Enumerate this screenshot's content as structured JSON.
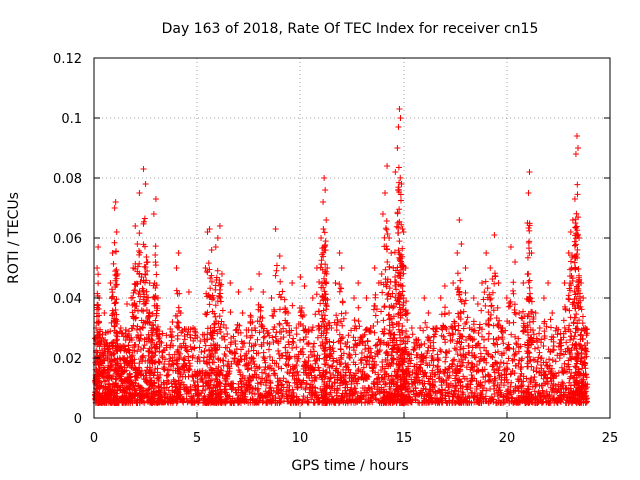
{
  "chart_data": {
    "type": "scatter",
    "title": "Day 163 of 2018, Rate Of TEC Index for receiver cn15",
    "xlabel": "GPS time / hours",
    "ylabel": "ROTI / TECUs",
    "xlim": [
      0,
      25
    ],
    "ylim": [
      0,
      0.12
    ],
    "xticks": [
      0,
      5,
      10,
      15,
      20,
      25
    ],
    "xtick_labels": [
      "0",
      "5",
      "10",
      "15",
      "20",
      "25"
    ],
    "yticks": [
      0,
      0.02,
      0.04,
      0.06,
      0.08,
      0.1,
      0.12
    ],
    "ytick_labels": [
      "0",
      "0.02",
      "0.04",
      "0.06",
      "0.08",
      "0.1",
      "0.12"
    ],
    "grid": true,
    "marker": "+",
    "marker_color": "#ff0000",
    "series": [
      {
        "name": "cn15",
        "points": [
          [
            0.05,
            0.012
          ],
          [
            0.1,
            0.03
          ],
          [
            0.15,
            0.05
          ],
          [
            0.2,
            0.057
          ],
          [
            0.25,
            0.04
          ],
          [
            0.3,
            0.02
          ],
          [
            0.4,
            0.015
          ],
          [
            0.5,
            0.035
          ],
          [
            0.6,
            0.025
          ],
          [
            0.7,
            0.01
          ],
          [
            0.8,
            0.045
          ],
          [
            0.9,
            0.055
          ],
          [
            1.0,
            0.07
          ],
          [
            1.05,
            0.072
          ],
          [
            1.1,
            0.062
          ],
          [
            1.15,
            0.048
          ],
          [
            1.3,
            0.03
          ],
          [
            1.4,
            0.02
          ],
          [
            1.5,
            0.012
          ],
          [
            1.6,
            0.038
          ],
          [
            1.7,
            0.028
          ],
          [
            1.8,
            0.04
          ],
          [
            1.9,
            0.05
          ],
          [
            2.0,
            0.064
          ],
          [
            2.1,
            0.058
          ],
          [
            2.2,
            0.075
          ],
          [
            2.3,
            0.047
          ],
          [
            2.4,
            0.083
          ],
          [
            2.5,
            0.078
          ],
          [
            2.6,
            0.052
          ],
          [
            2.7,
            0.045
          ],
          [
            2.8,
            0.03
          ],
          [
            2.9,
            0.068
          ],
          [
            3.0,
            0.073
          ],
          [
            3.1,
            0.04
          ],
          [
            3.2,
            0.025
          ],
          [
            3.4,
            0.018
          ],
          [
            3.6,
            0.012
          ],
          [
            3.8,
            0.032
          ],
          [
            4.0,
            0.05
          ],
          [
            4.1,
            0.055
          ],
          [
            4.2,
            0.035
          ],
          [
            4.4,
            0.02
          ],
          [
            4.6,
            0.042
          ],
          [
            4.8,
            0.03
          ],
          [
            5.0,
            0.015
          ],
          [
            5.2,
            0.022
          ],
          [
            5.4,
            0.05
          ],
          [
            5.5,
            0.062
          ],
          [
            5.6,
            0.063
          ],
          [
            5.7,
            0.056
          ],
          [
            5.8,
            0.04
          ],
          [
            5.9,
            0.057
          ],
          [
            6.0,
            0.06
          ],
          [
            6.1,
            0.064
          ],
          [
            6.2,
            0.048
          ],
          [
            6.4,
            0.03
          ],
          [
            6.6,
            0.045
          ],
          [
            6.8,
            0.02
          ],
          [
            7.0,
            0.042
          ],
          [
            7.2,
            0.035
          ],
          [
            7.4,
            0.02
          ],
          [
            7.6,
            0.043
          ],
          [
            7.8,
            0.03
          ],
          [
            8.0,
            0.048
          ],
          [
            8.2,
            0.042
          ],
          [
            8.4,
            0.025
          ],
          [
            8.6,
            0.04
          ],
          [
            8.8,
            0.063
          ],
          [
            9.0,
            0.054
          ],
          [
            9.2,
            0.05
          ],
          [
            9.4,
            0.035
          ],
          [
            9.6,
            0.045
          ],
          [
            9.8,
            0.03
          ],
          [
            10.0,
            0.047
          ],
          [
            10.2,
            0.044
          ],
          [
            10.4,
            0.025
          ],
          [
            10.6,
            0.04
          ],
          [
            10.8,
            0.05
          ],
          [
            11.0,
            0.06
          ],
          [
            11.1,
            0.072
          ],
          [
            11.15,
            0.08
          ],
          [
            11.2,
            0.076
          ],
          [
            11.25,
            0.066
          ],
          [
            11.3,
            0.05
          ],
          [
            11.5,
            0.03
          ],
          [
            11.7,
            0.045
          ],
          [
            11.9,
            0.055
          ],
          [
            12.0,
            0.05
          ],
          [
            12.2,
            0.035
          ],
          [
            12.4,
            0.02
          ],
          [
            12.6,
            0.04
          ],
          [
            12.8,
            0.045
          ],
          [
            13.0,
            0.025
          ],
          [
            13.2,
            0.04
          ],
          [
            13.4,
            0.03
          ],
          [
            13.6,
            0.05
          ],
          [
            13.8,
            0.045
          ],
          [
            14.0,
            0.068
          ],
          [
            14.1,
            0.075
          ],
          [
            14.2,
            0.084
          ],
          [
            14.3,
            0.06
          ],
          [
            14.4,
            0.055
          ],
          [
            14.5,
            0.05
          ],
          [
            14.6,
            0.082
          ],
          [
            14.7,
            0.09
          ],
          [
            14.75,
            0.097
          ],
          [
            14.8,
            0.103
          ],
          [
            14.85,
            0.1
          ],
          [
            14.9,
            0.078
          ],
          [
            14.95,
            0.063
          ],
          [
            15.0,
            0.062
          ],
          [
            15.1,
            0.05
          ],
          [
            15.2,
            0.035
          ],
          [
            15.4,
            0.03
          ],
          [
            15.6,
            0.025
          ],
          [
            15.8,
            0.03
          ],
          [
            16.0,
            0.04
          ],
          [
            16.2,
            0.035
          ],
          [
            16.4,
            0.02
          ],
          [
            16.6,
            0.03
          ],
          [
            16.8,
            0.04
          ],
          [
            17.0,
            0.044
          ],
          [
            17.2,
            0.035
          ],
          [
            17.4,
            0.045
          ],
          [
            17.6,
            0.055
          ],
          [
            17.7,
            0.066
          ],
          [
            17.8,
            0.058
          ],
          [
            18.0,
            0.05
          ],
          [
            18.2,
            0.03
          ],
          [
            18.4,
            0.04
          ],
          [
            18.6,
            0.038
          ],
          [
            18.8,
            0.045
          ],
          [
            19.0,
            0.055
          ],
          [
            19.2,
            0.05
          ],
          [
            19.4,
            0.061
          ],
          [
            19.6,
            0.045
          ],
          [
            19.8,
            0.03
          ],
          [
            20.0,
            0.04
          ],
          [
            20.2,
            0.057
          ],
          [
            20.4,
            0.052
          ],
          [
            20.6,
            0.035
          ],
          [
            20.8,
            0.045
          ],
          [
            21.0,
            0.065
          ],
          [
            21.05,
            0.075
          ],
          [
            21.1,
            0.082
          ],
          [
            21.2,
            0.055
          ],
          [
            21.4,
            0.035
          ],
          [
            21.6,
            0.03
          ],
          [
            21.8,
            0.04
          ],
          [
            22.0,
            0.045
          ],
          [
            22.2,
            0.035
          ],
          [
            22.4,
            0.03
          ],
          [
            22.6,
            0.025
          ],
          [
            22.8,
            0.045
          ],
          [
            23.0,
            0.055
          ],
          [
            23.1,
            0.062
          ],
          [
            23.2,
            0.066
          ],
          [
            23.3,
            0.073
          ],
          [
            23.35,
            0.088
          ],
          [
            23.4,
            0.094
          ],
          [
            23.45,
            0.09
          ],
          [
            23.5,
            0.06
          ],
          [
            23.6,
            0.045
          ],
          [
            23.7,
            0.04
          ],
          [
            23.8,
            0.03
          ],
          [
            23.9,
            0.025
          ]
        ],
        "base_range": [
          0.005,
          0.03
        ]
      }
    ]
  }
}
